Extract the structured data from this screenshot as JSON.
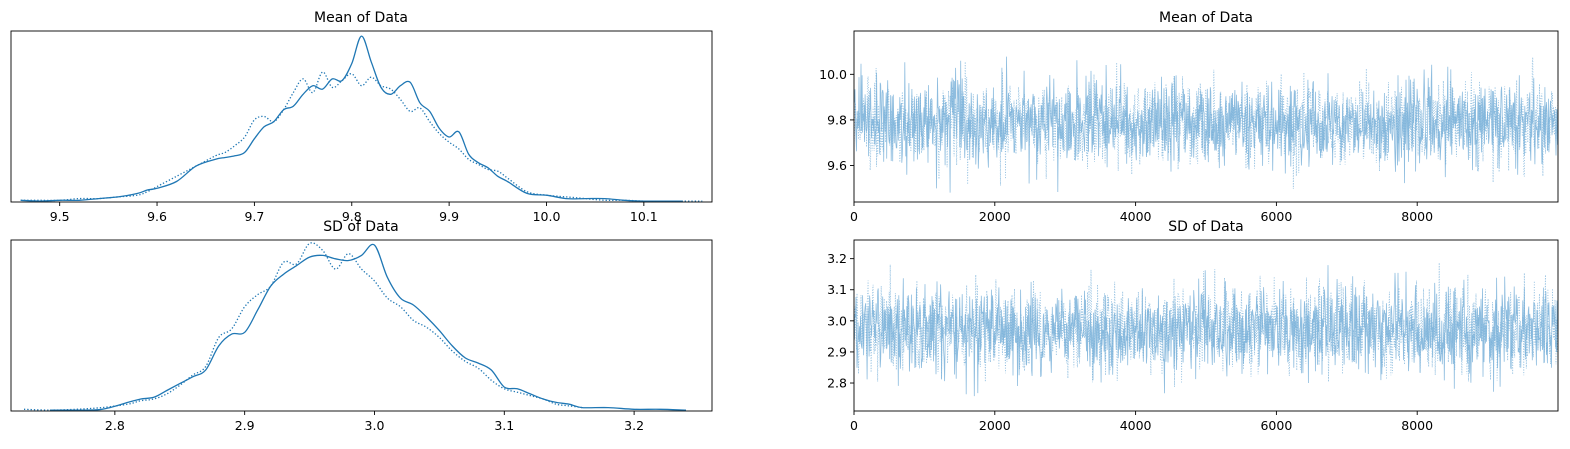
{
  "chart_data": [
    {
      "type": "line",
      "panel": "kde",
      "title": "Mean of Data",
      "xlabel": "",
      "ylabel": "",
      "xlim": [
        9.45,
        10.17
      ],
      "ylim": [
        0,
        1.0
      ],
      "xticks": [
        9.5,
        9.6,
        9.7,
        9.8,
        9.9,
        10.0,
        10.1
      ],
      "xtick_labels": [
        "9.5",
        "9.6",
        "9.7",
        "9.8",
        "9.9",
        "10.0",
        "10.1"
      ],
      "yticks_visible": false,
      "color": "#1f77b4",
      "series": [
        {
          "style": "solid",
          "x": [
            9.46,
            9.48,
            9.5,
            9.52,
            9.54,
            9.56,
            9.58,
            9.59,
            9.6,
            9.62,
            9.64,
            9.66,
            9.67,
            9.68,
            9.69,
            9.7,
            9.71,
            9.72,
            9.73,
            9.74,
            9.75,
            9.76,
            9.77,
            9.78,
            9.79,
            9.8,
            9.81,
            9.82,
            9.83,
            9.84,
            9.85,
            9.86,
            9.87,
            9.88,
            9.89,
            9.9,
            9.91,
            9.92,
            9.93,
            9.94,
            9.95,
            9.96,
            9.98,
            10.0,
            10.02,
            10.04,
            10.06,
            10.08,
            10.1,
            10.12,
            10.14
          ],
          "y": [
            0.01,
            0.005,
            0.01,
            0.01,
            0.02,
            0.03,
            0.05,
            0.07,
            0.08,
            0.12,
            0.21,
            0.25,
            0.26,
            0.27,
            0.29,
            0.37,
            0.44,
            0.47,
            0.54,
            0.56,
            0.63,
            0.68,
            0.66,
            0.72,
            0.71,
            0.81,
            0.97,
            0.82,
            0.67,
            0.63,
            0.68,
            0.7,
            0.58,
            0.53,
            0.43,
            0.38,
            0.41,
            0.28,
            0.23,
            0.2,
            0.15,
            0.12,
            0.05,
            0.04,
            0.02,
            0.02,
            0.02,
            0.01,
            0.005,
            0.005,
            0.005
          ]
        },
        {
          "style": "dotted",
          "x": [
            9.46,
            9.48,
            9.5,
            9.52,
            9.54,
            9.56,
            9.58,
            9.59,
            9.6,
            9.62,
            9.64,
            9.66,
            9.67,
            9.68,
            9.69,
            9.7,
            9.71,
            9.72,
            9.73,
            9.74,
            9.75,
            9.76,
            9.77,
            9.78,
            9.79,
            9.8,
            9.81,
            9.82,
            9.83,
            9.84,
            9.85,
            9.86,
            9.87,
            9.88,
            9.89,
            9.9,
            9.91,
            9.92,
            9.93,
            9.94,
            9.95,
            9.96,
            9.98,
            10.0,
            10.02,
            10.04,
            10.06,
            10.08,
            10.1,
            10.12,
            10.14,
            10.16
          ],
          "y": [
            0.01,
            0.01,
            0.01,
            0.02,
            0.02,
            0.03,
            0.04,
            0.06,
            0.09,
            0.15,
            0.21,
            0.27,
            0.29,
            0.33,
            0.38,
            0.48,
            0.5,
            0.47,
            0.54,
            0.64,
            0.72,
            0.64,
            0.76,
            0.67,
            0.71,
            0.75,
            0.68,
            0.73,
            0.68,
            0.66,
            0.6,
            0.53,
            0.55,
            0.47,
            0.4,
            0.35,
            0.31,
            0.25,
            0.22,
            0.19,
            0.18,
            0.14,
            0.06,
            0.04,
            0.03,
            0.02,
            0.01,
            0.01,
            0.005,
            0.005,
            0.005,
            0.005
          ]
        }
      ]
    },
    {
      "type": "line",
      "panel": "trace",
      "title": "Mean of Data",
      "xlabel": "",
      "ylabel": "",
      "xlim": [
        0,
        10000
      ],
      "ylim": [
        9.44,
        10.19
      ],
      "xticks": [
        0,
        2000,
        4000,
        6000,
        8000
      ],
      "xtick_labels": [
        "0",
        "2000",
        "4000",
        "6000",
        "8000"
      ],
      "yticks": [
        9.6,
        9.8,
        10.0
      ],
      "ytick_labels": [
        "9.6",
        "9.8",
        "10.0"
      ],
      "color": "#7ab2d9",
      "center": 9.79,
      "sd": 0.09,
      "min": 9.46,
      "max": 10.16,
      "series": [
        {
          "style": "solid"
        },
        {
          "style": "dotted"
        }
      ]
    },
    {
      "type": "line",
      "panel": "kde",
      "title": "SD of Data",
      "xlabel": "",
      "ylabel": "",
      "xlim": [
        2.72,
        3.26
      ],
      "ylim": [
        0,
        1.0
      ],
      "xticks": [
        2.8,
        2.9,
        3.0,
        3.1,
        3.2
      ],
      "xtick_labels": [
        "2.8",
        "2.9",
        "3.0",
        "3.1",
        "3.2"
      ],
      "yticks_visible": false,
      "color": "#1f77b4",
      "series": [
        {
          "style": "solid",
          "x": [
            2.75,
            2.77,
            2.79,
            2.81,
            2.82,
            2.83,
            2.84,
            2.85,
            2.86,
            2.87,
            2.88,
            2.89,
            2.9,
            2.91,
            2.92,
            2.93,
            2.94,
            2.95,
            2.96,
            2.97,
            2.98,
            2.99,
            3.0,
            3.01,
            3.02,
            3.03,
            3.04,
            3.05,
            3.06,
            3.07,
            3.08,
            3.09,
            3.1,
            3.11,
            3.12,
            3.13,
            3.14,
            3.15,
            3.16,
            3.18,
            3.2,
            3.22,
            3.24
          ],
          "y": [
            0.005,
            0.005,
            0.01,
            0.05,
            0.07,
            0.08,
            0.12,
            0.16,
            0.2,
            0.24,
            0.38,
            0.45,
            0.46,
            0.59,
            0.73,
            0.8,
            0.85,
            0.9,
            0.91,
            0.89,
            0.88,
            0.91,
            0.97,
            0.78,
            0.66,
            0.62,
            0.55,
            0.47,
            0.38,
            0.31,
            0.28,
            0.24,
            0.14,
            0.13,
            0.1,
            0.07,
            0.05,
            0.04,
            0.02,
            0.02,
            0.01,
            0.01,
            0.005
          ]
        },
        {
          "style": "dotted",
          "x": [
            2.73,
            2.75,
            2.77,
            2.79,
            2.81,
            2.82,
            2.83,
            2.84,
            2.85,
            2.86,
            2.87,
            2.88,
            2.89,
            2.9,
            2.91,
            2.92,
            2.93,
            2.94,
            2.95,
            2.96,
            2.97,
            2.98,
            2.99,
            3.0,
            3.01,
            3.02,
            3.03,
            3.04,
            3.05,
            3.06,
            3.07,
            3.08,
            3.09,
            3.1,
            3.11,
            3.12,
            3.13,
            3.14,
            3.15,
            3.16
          ],
          "y": [
            0.01,
            0.005,
            0.01,
            0.02,
            0.04,
            0.06,
            0.07,
            0.1,
            0.15,
            0.21,
            0.26,
            0.43,
            0.48,
            0.61,
            0.68,
            0.73,
            0.87,
            0.86,
            0.98,
            0.94,
            0.83,
            0.92,
            0.83,
            0.76,
            0.66,
            0.61,
            0.53,
            0.49,
            0.43,
            0.35,
            0.29,
            0.25,
            0.18,
            0.13,
            0.11,
            0.09,
            0.07,
            0.04,
            0.03,
            0.02
          ]
        }
      ]
    },
    {
      "type": "line",
      "panel": "trace",
      "title": "SD of Data",
      "xlabel": "",
      "ylabel": "",
      "xlim": [
        0,
        10000
      ],
      "ylim": [
        2.71,
        3.26
      ],
      "xticks": [
        0,
        2000,
        4000,
        6000,
        8000
      ],
      "xtick_labels": [
        "0",
        "2000",
        "4000",
        "6000",
        "8000"
      ],
      "yticks": [
        2.8,
        2.9,
        3.0,
        3.1,
        3.2
      ],
      "ytick_labels": [
        "2.8",
        "2.9",
        "3.0",
        "3.1",
        "3.2"
      ],
      "color": "#7ab2d9",
      "center": 2.97,
      "sd": 0.07,
      "min": 2.74,
      "max": 3.24,
      "series": [
        {
          "style": "solid"
        },
        {
          "style": "dotted"
        }
      ]
    }
  ]
}
